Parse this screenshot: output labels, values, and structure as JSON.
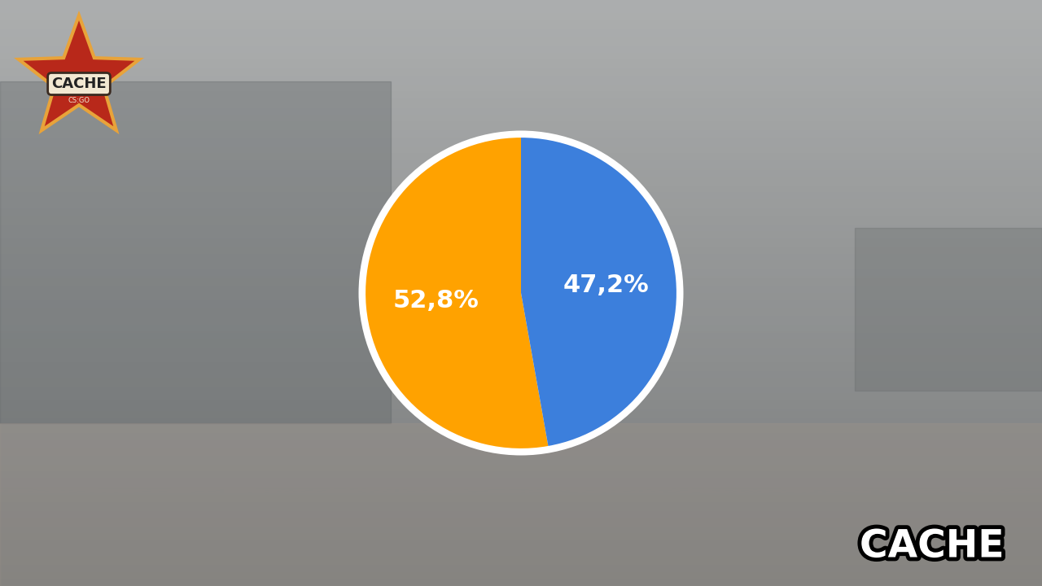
{
  "chart_data": {
    "type": "pie",
    "values": [
      52.8,
      47.2
    ],
    "value_labels": [
      "52,8%",
      "47,2%"
    ],
    "colors": [
      "#ffa200",
      "#3c7fdc"
    ],
    "data_labels": true
  },
  "logo": {
    "title": "CACHE",
    "subtitle": "CS:GO"
  },
  "caption": "CACHE"
}
